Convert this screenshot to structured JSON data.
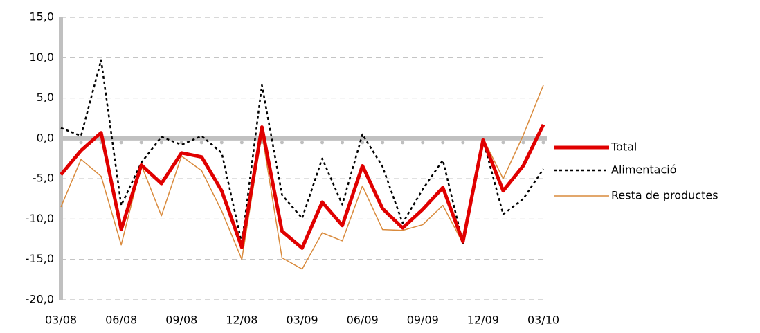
{
  "chart_data": {
    "type": "line",
    "categories": [
      "03/08",
      null,
      null,
      "06/08",
      null,
      null,
      "09/08",
      null,
      null,
      "12/08",
      null,
      null,
      "03/09",
      null,
      null,
      "06/09",
      null,
      null,
      "09/09",
      null,
      null,
      "12/09",
      null,
      null,
      "03/10"
    ],
    "series": [
      {
        "name": "Total",
        "color": "#e00000",
        "line_style": "solid",
        "values": [
          -4.5,
          -1.5,
          0.7,
          -11.3,
          -3.3,
          -5.6,
          -1.8,
          -2.3,
          -6.5,
          -13.5,
          1.4,
          -11.5,
          -13.6,
          -7.9,
          -10.8,
          -3.4,
          -8.7,
          -11.1,
          -8.8,
          -6.1,
          -12.8,
          -0.2,
          -6.5,
          -3.4,
          1.7
        ]
      },
      {
        "name": "Alimentació",
        "color": "#000000",
        "line_style": "dotted",
        "values": [
          1.3,
          0.3,
          9.7,
          -8.3,
          -3.0,
          0.2,
          -0.8,
          0.3,
          -1.8,
          -13.0,
          6.6,
          -7.0,
          -9.9,
          -2.5,
          -8.2,
          0.5,
          -3.5,
          -10.5,
          -6.3,
          -2.7,
          -13.0,
          -0.2,
          -9.4,
          -7.5,
          -3.8
        ]
      },
      {
        "name": "Resta de productes",
        "color": "#d98a3c",
        "line_style": "thin",
        "values": [
          -8.5,
          -2.6,
          -4.7,
          -13.2,
          -3.3,
          -9.6,
          -2.2,
          -4.0,
          -9.0,
          -15.0,
          0.6,
          -14.8,
          -16.2,
          -11.7,
          -12.7,
          -5.9,
          -11.3,
          -11.4,
          -10.7,
          -8.3,
          -13.0,
          0.0,
          -5.0,
          0.4,
          6.6
        ]
      }
    ],
    "ylim": [
      -20,
      15
    ],
    "yticks": [
      {
        "value": -20,
        "label": "-20,0"
      },
      {
        "value": -15,
        "label": "-15,0"
      },
      {
        "value": -10,
        "label": "-10,0"
      },
      {
        "value": -5,
        "label": "-5,0"
      },
      {
        "value": 0,
        "label": "0,0"
      },
      {
        "value": 5,
        "label": "5,0"
      },
      {
        "value": 10,
        "label": "10,0"
      },
      {
        "value": 15,
        "label": "15,0"
      }
    ],
    "grid": true,
    "legend": "right"
  }
}
